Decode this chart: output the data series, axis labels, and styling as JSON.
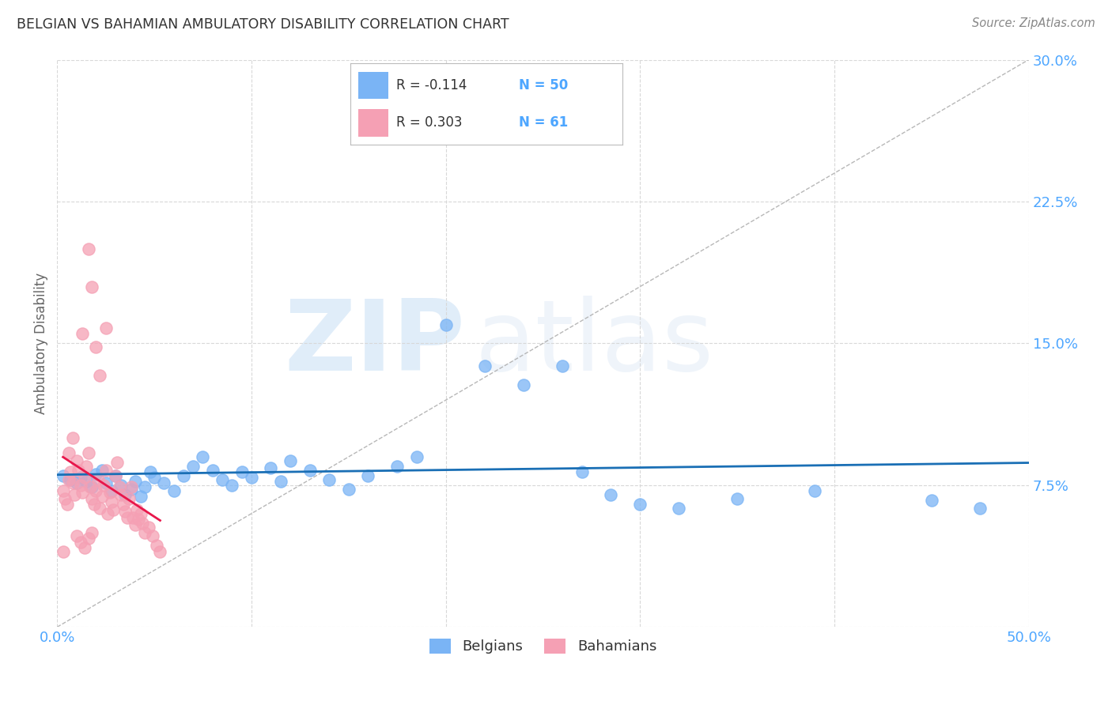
{
  "title": "BELGIAN VS BAHAMIAN AMBULATORY DISABILITY CORRELATION CHART",
  "source": "Source: ZipAtlas.com",
  "ylabel": "Ambulatory Disability",
  "xlim": [
    0.0,
    0.5
  ],
  "ylim": [
    0.0,
    0.3
  ],
  "belgian_R": -0.114,
  "belgian_N": 50,
  "bahamian_R": 0.303,
  "bahamian_N": 61,
  "belgian_color": "#7ab4f5",
  "bahamian_color": "#f5a0b4",
  "trendline_belgian_color": "#1a6fb5",
  "trendline_bahamian_color": "#e8174b",
  "diagonal_color": "#b0b0b0",
  "background_color": "#ffffff",
  "grid_color": "#d8d8d8",
  "title_color": "#333333",
  "axis_label_color": "#666666",
  "tick_color": "#4da6ff",
  "watermark_zip": "ZIP",
  "watermark_atlas": "atlas",
  "belgian_points": [
    [
      0.003,
      0.08
    ],
    [
      0.007,
      0.078
    ],
    [
      0.01,
      0.076
    ],
    [
      0.012,
      0.079
    ],
    [
      0.015,
      0.077
    ],
    [
      0.018,
      0.074
    ],
    [
      0.02,
      0.081
    ],
    [
      0.023,
      0.083
    ],
    [
      0.025,
      0.076
    ],
    [
      0.028,
      0.072
    ],
    [
      0.03,
      0.08
    ],
    [
      0.033,
      0.075
    ],
    [
      0.035,
      0.07
    ],
    [
      0.038,
      0.073
    ],
    [
      0.04,
      0.077
    ],
    [
      0.043,
      0.069
    ],
    [
      0.045,
      0.074
    ],
    [
      0.048,
      0.082
    ],
    [
      0.05,
      0.079
    ],
    [
      0.055,
      0.076
    ],
    [
      0.06,
      0.072
    ],
    [
      0.065,
      0.08
    ],
    [
      0.07,
      0.085
    ],
    [
      0.075,
      0.09
    ],
    [
      0.08,
      0.083
    ],
    [
      0.085,
      0.078
    ],
    [
      0.09,
      0.075
    ],
    [
      0.095,
      0.082
    ],
    [
      0.1,
      0.079
    ],
    [
      0.11,
      0.084
    ],
    [
      0.115,
      0.077
    ],
    [
      0.12,
      0.088
    ],
    [
      0.13,
      0.083
    ],
    [
      0.14,
      0.078
    ],
    [
      0.15,
      0.073
    ],
    [
      0.16,
      0.08
    ],
    [
      0.175,
      0.085
    ],
    [
      0.185,
      0.09
    ],
    [
      0.2,
      0.16
    ],
    [
      0.22,
      0.138
    ],
    [
      0.24,
      0.128
    ],
    [
      0.26,
      0.138
    ],
    [
      0.27,
      0.082
    ],
    [
      0.285,
      0.07
    ],
    [
      0.3,
      0.065
    ],
    [
      0.32,
      0.063
    ],
    [
      0.35,
      0.068
    ],
    [
      0.39,
      0.072
    ],
    [
      0.45,
      0.067
    ],
    [
      0.475,
      0.063
    ]
  ],
  "bahamian_points": [
    [
      0.003,
      0.072
    ],
    [
      0.004,
      0.068
    ],
    [
      0.005,
      0.065
    ],
    [
      0.006,
      0.078
    ],
    [
      0.007,
      0.082
    ],
    [
      0.008,
      0.076
    ],
    [
      0.009,
      0.07
    ],
    [
      0.01,
      0.088
    ],
    [
      0.011,
      0.083
    ],
    [
      0.012,
      0.075
    ],
    [
      0.013,
      0.071
    ],
    [
      0.014,
      0.079
    ],
    [
      0.015,
      0.085
    ],
    [
      0.016,
      0.092
    ],
    [
      0.017,
      0.074
    ],
    [
      0.018,
      0.068
    ],
    [
      0.019,
      0.065
    ],
    [
      0.02,
      0.072
    ],
    [
      0.021,
      0.078
    ],
    [
      0.022,
      0.063
    ],
    [
      0.023,
      0.069
    ],
    [
      0.024,
      0.075
    ],
    [
      0.025,
      0.083
    ],
    [
      0.026,
      0.06
    ],
    [
      0.027,
      0.071
    ],
    [
      0.028,
      0.066
    ],
    [
      0.029,
      0.062
    ],
    [
      0.03,
      0.08
    ],
    [
      0.031,
      0.087
    ],
    [
      0.032,
      0.074
    ],
    [
      0.033,
      0.07
    ],
    [
      0.034,
      0.065
    ],
    [
      0.035,
      0.061
    ],
    [
      0.036,
      0.058
    ],
    [
      0.037,
      0.068
    ],
    [
      0.038,
      0.074
    ],
    [
      0.039,
      0.058
    ],
    [
      0.04,
      0.054
    ],
    [
      0.041,
      0.062
    ],
    [
      0.042,
      0.057
    ],
    [
      0.043,
      0.06
    ],
    [
      0.044,
      0.055
    ],
    [
      0.045,
      0.05
    ],
    [
      0.047,
      0.053
    ],
    [
      0.049,
      0.048
    ],
    [
      0.051,
      0.043
    ],
    [
      0.053,
      0.04
    ],
    [
      0.01,
      0.048
    ],
    [
      0.012,
      0.045
    ],
    [
      0.014,
      0.042
    ],
    [
      0.016,
      0.047
    ],
    [
      0.018,
      0.05
    ],
    [
      0.003,
      0.04
    ],
    [
      0.013,
      0.155
    ],
    [
      0.016,
      0.2
    ],
    [
      0.018,
      0.18
    ],
    [
      0.02,
      0.148
    ],
    [
      0.022,
      0.133
    ],
    [
      0.025,
      0.158
    ],
    [
      0.006,
      0.092
    ],
    [
      0.008,
      0.1
    ]
  ]
}
